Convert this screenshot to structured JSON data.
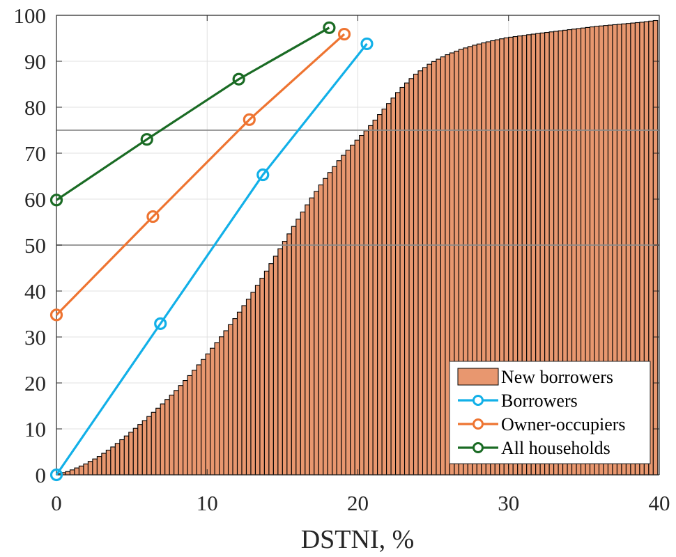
{
  "chart_data": {
    "type": "bar+line",
    "title": "",
    "xlabel": "DSTNI, %",
    "ylabel": "",
    "xlim": [
      0,
      40
    ],
    "ylim": [
      0,
      100
    ],
    "xticks": [
      "0",
      "10",
      "20",
      "30",
      "40"
    ],
    "yticks": [
      "0",
      "10",
      "20",
      "30",
      "40",
      "50",
      "60",
      "70",
      "80",
      "90",
      "100"
    ],
    "grid": true,
    "reference_lines_y": [
      50,
      75
    ],
    "legend_position": "bottom-right",
    "colors": {
      "bar_fill": "#E8976F",
      "bar_edge": "#000000",
      "borrowers": "#12B0E8",
      "owner_occupiers": "#EE7431",
      "all_households": "#1A6B24",
      "reference_line": "#8C8C8C",
      "grid": "#E0E0E0"
    },
    "histogram": {
      "name": "New borrowers",
      "bin_width": 0.3,
      "bin_start": 0,
      "values": [
        0.24,
        0.48,
        0.72,
        1.08,
        1.5,
        1.92,
        2.38,
        2.92,
        3.46,
        4.0,
        4.69,
        5.38,
        6.07,
        6.84,
        7.65,
        8.46,
        9.28,
        10.12,
        10.96,
        11.8,
        12.7,
        13.6,
        14.5,
        15.44,
        16.4,
        17.36,
        18.36,
        19.44,
        20.52,
        21.6,
        22.77,
        23.94,
        25.11,
        26.32,
        27.55,
        28.78,
        30.04,
        31.36,
        32.68,
        34.0,
        35.41,
        36.82,
        38.23,
        39.72,
        41.25,
        42.78,
        44.34,
        45.96,
        47.58,
        49.2,
        50.82,
        52.44,
        54.06,
        55.64,
        57.2,
        58.76,
        60.27,
        61.68,
        63.09,
        64.5,
        65.79,
        67.08,
        68.37,
        69.54,
        70.65,
        71.76,
        72.84,
        73.86,
        74.88,
        76.0,
        77.2,
        78.4,
        79.6,
        80.8,
        82.0,
        83.2,
        84.32,
        85.28,
        86.24,
        87.2,
        87.92,
        88.64,
        89.36,
        89.94,
        90.45,
        90.96,
        91.43,
        91.82,
        92.21,
        92.6,
        92.9,
        93.2,
        93.5,
        93.76,
        94.0,
        94.24,
        94.47,
        94.68,
        94.89,
        95.1,
        95.24,
        95.37,
        95.51,
        95.64,
        95.78,
        95.91,
        96.04,
        96.16,
        96.28,
        96.4,
        96.52,
        96.64,
        96.76,
        96.88,
        97.0,
        97.12,
        97.24,
        97.36,
        97.48,
        97.6,
        97.69,
        97.78,
        97.87,
        97.96,
        98.05,
        98.14,
        98.23,
        98.32,
        98.41,
        98.5,
        98.62,
        98.74,
        98.86
      ]
    },
    "series": [
      {
        "key": "borrowers",
        "name": "Borrowers",
        "x": [
          0,
          6.9,
          13.7,
          20.6
        ],
        "y": [
          0,
          32.9,
          65.3,
          93.8
        ]
      },
      {
        "key": "owner_occupiers",
        "name": "Owner-occupiers",
        "x": [
          0,
          6.4,
          12.8,
          19.1
        ],
        "y": [
          34.8,
          56.2,
          77.3,
          95.9
        ]
      },
      {
        "key": "all_households",
        "name": "All households",
        "x": [
          0,
          6.0,
          12.1,
          18.1
        ],
        "y": [
          59.8,
          73.0,
          86.1,
          97.3
        ]
      }
    ]
  }
}
